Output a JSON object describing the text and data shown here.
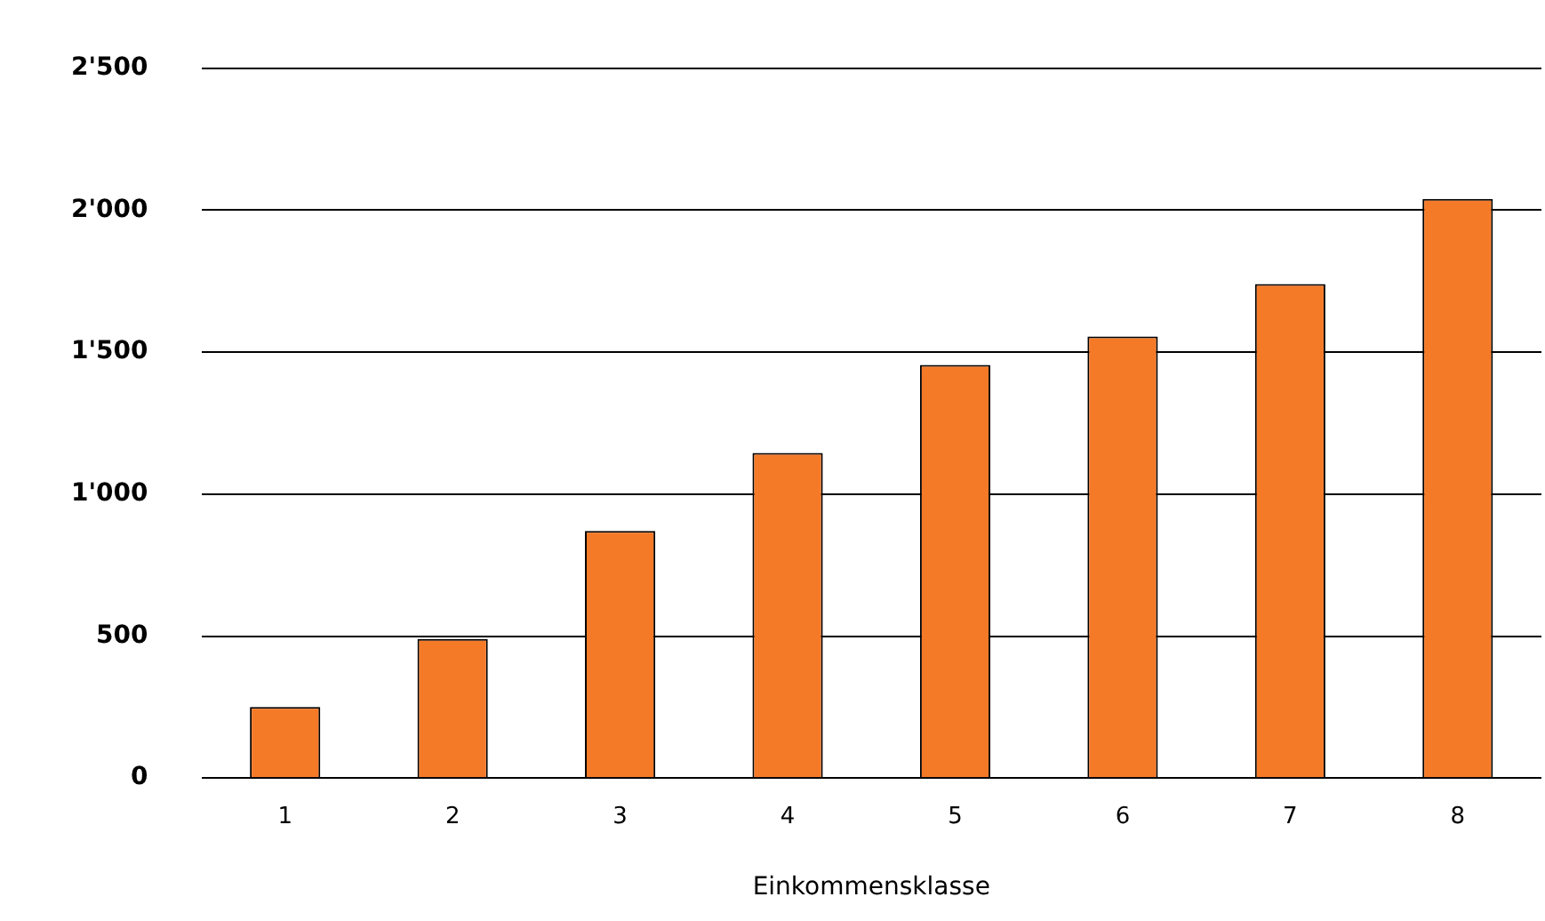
{
  "chart_data": {
    "type": "bar",
    "xlabel": "Einkommensklasse",
    "categories": [
      "1",
      "2",
      "3",
      "4",
      "5",
      "6",
      "7",
      "8"
    ],
    "values": [
      250,
      490,
      870,
      1145,
      1455,
      1555,
      1740,
      2040
    ],
    "color": "#f57a28",
    "ylim": [
      0,
      2500
    ],
    "yticks": [
      {
        "value": 0,
        "label": "0"
      },
      {
        "value": 500,
        "label": "500"
      },
      {
        "value": 1000,
        "label": "1'000"
      },
      {
        "value": 1500,
        "label": "1'500"
      },
      {
        "value": 2000,
        "label": "2'000"
      },
      {
        "value": 2500,
        "label": "2'500"
      }
    ],
    "grid": "y",
    "legend": false
  }
}
